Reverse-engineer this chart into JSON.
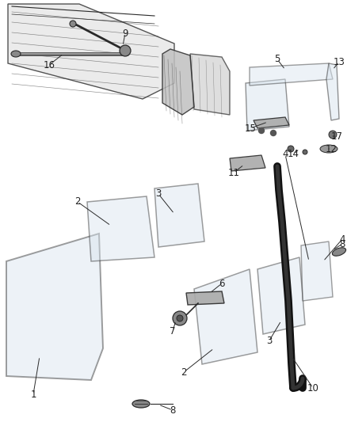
{
  "bg_color": "#ffffff",
  "line_color": "#2a2a2a",
  "label_color": "#222222",
  "label_fontsize": 8.5,
  "glass_color": "#d8e4ee",
  "glass_alpha": 0.45,
  "dark_color": "#111111",
  "gray_color": "#888888",
  "mid_gray": "#aaaaaa"
}
